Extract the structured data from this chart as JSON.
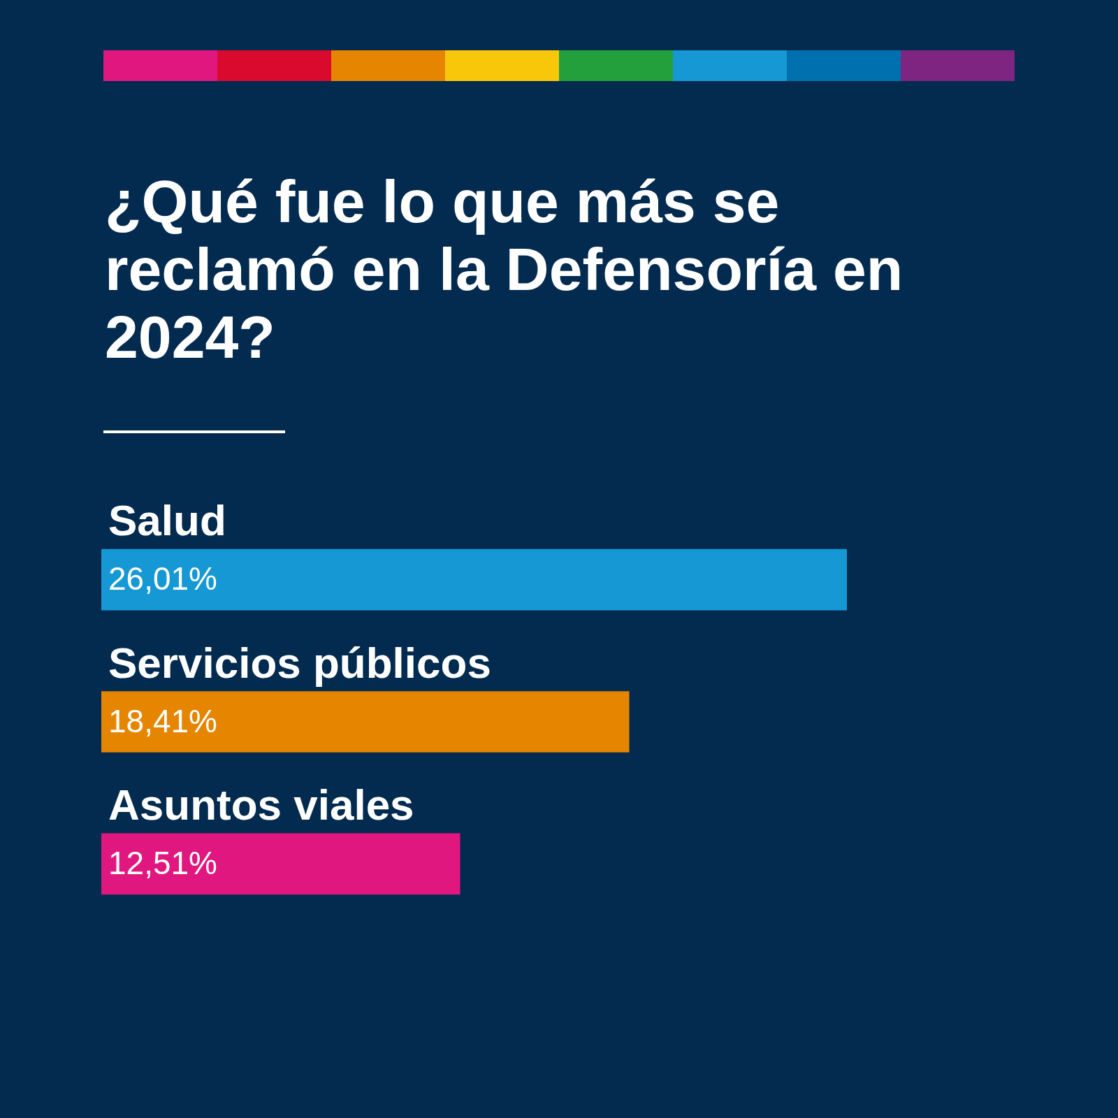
{
  "chart_data": {
    "type": "bar",
    "orientation": "horizontal",
    "title": "¿Qué fue lo que más se reclamó en la Defensoría en 2024?",
    "categories": [
      "Salud",
      "Servicios públicos",
      "Asuntos viales"
    ],
    "values": [
      26.01,
      18.41,
      12.51
    ],
    "colors": [
      "#1598d3",
      "#e58500",
      "#e0177f"
    ],
    "value_labels": [
      "26,01%",
      "18,41%",
      "12,51%"
    ],
    "tick_labels": "y"
  }
}
